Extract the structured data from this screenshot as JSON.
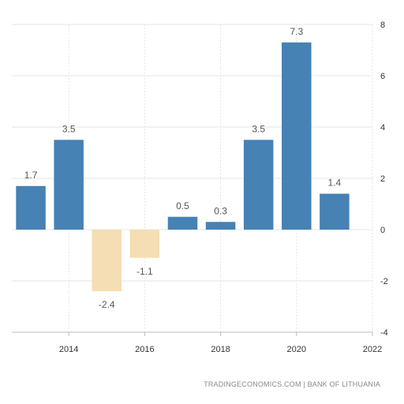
{
  "chart_data": {
    "type": "bar",
    "x": [
      2013,
      2014,
      2015,
      2016,
      2017,
      2018,
      2019,
      2020,
      2021
    ],
    "values": [
      1.7,
      3.5,
      -2.4,
      -1.1,
      0.5,
      0.3,
      3.5,
      7.3,
      1.4
    ],
    "value_labels": [
      "1.7",
      "3.5",
      "-2.4",
      "-1.1",
      "0.5",
      "0.3",
      "3.5",
      "7.3",
      "1.4"
    ],
    "x_ticks": [
      2014,
      2016,
      2018,
      2020,
      2022
    ],
    "x_tick_labels": [
      "2014",
      "2016",
      "2018",
      "2020",
      "2022"
    ],
    "y_ticks": [
      -4,
      -2,
      0,
      2,
      4,
      6,
      8
    ],
    "y_tick_labels": [
      "-4",
      "-2",
      "0",
      "2",
      "4",
      "6",
      "8"
    ],
    "ylim": [
      -4,
      8
    ],
    "xlim": [
      2012.5,
      2022
    ],
    "title": "",
    "xlabel": "",
    "ylabel": "",
    "grid": true,
    "y_axis_position": "right",
    "colors": {
      "positive": "#4682b4",
      "negative": "#f5deb3"
    }
  },
  "footer": {
    "source": "TRADINGECONOMICS.COM | BANK OF LITHUANIA"
  }
}
